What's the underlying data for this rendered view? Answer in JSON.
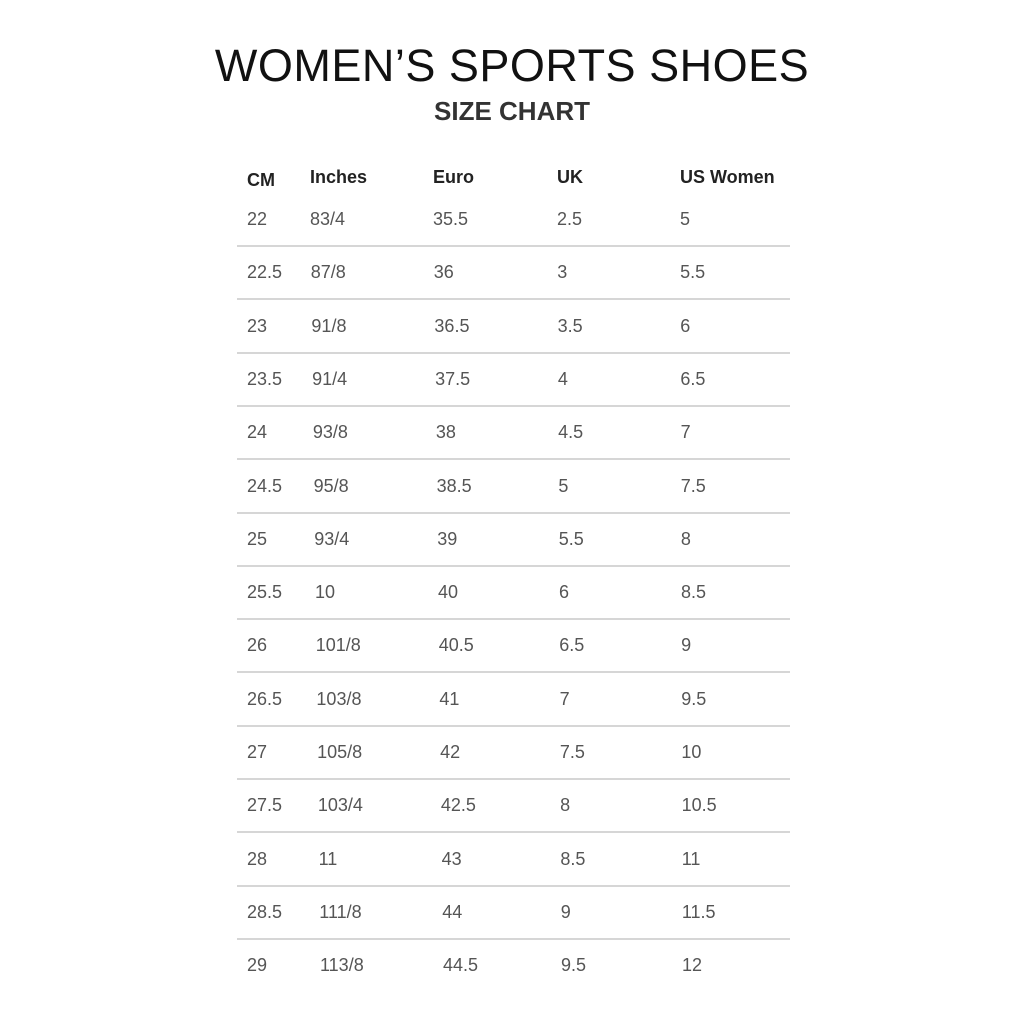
{
  "title": "WOMEN’S SPORTS SHOES",
  "subtitle": "SIZE CHART",
  "columns": [
    "CM",
    "Inches",
    "Euro",
    "UK",
    "US Women"
  ],
  "rows": [
    [
      "22",
      "83/4",
      "35.5",
      "2.5",
      "5"
    ],
    [
      "22.5",
      "87/8",
      "36",
      "3",
      "5.5"
    ],
    [
      "23",
      "91/8",
      "36.5",
      "3.5",
      "6"
    ],
    [
      "23.5",
      "91/4",
      "37.5",
      "4",
      "6.5"
    ],
    [
      "24",
      "93/8",
      "38",
      "4.5",
      "7"
    ],
    [
      "24.5",
      "95/8",
      "38.5",
      "5",
      "7.5"
    ],
    [
      "25",
      "93/4",
      "39",
      "5.5",
      "8"
    ],
    [
      "25.5",
      "10",
      "40",
      "6",
      "8.5"
    ],
    [
      "26",
      "101/8",
      "40.5",
      "6.5",
      "9"
    ],
    [
      "26.5",
      "103/8",
      "41",
      "7",
      "9.5"
    ],
    [
      "27",
      "105/8",
      "42",
      "7.5",
      "10"
    ],
    [
      "27.5",
      "103/4",
      "42.5",
      "8",
      "10.5"
    ],
    [
      "28",
      "11",
      "43",
      "8.5",
      "11"
    ],
    [
      "28.5",
      "111/8",
      "44",
      "9",
      "11.5"
    ],
    [
      "29",
      "113/8",
      "44.5",
      "9.5",
      "12"
    ]
  ]
}
